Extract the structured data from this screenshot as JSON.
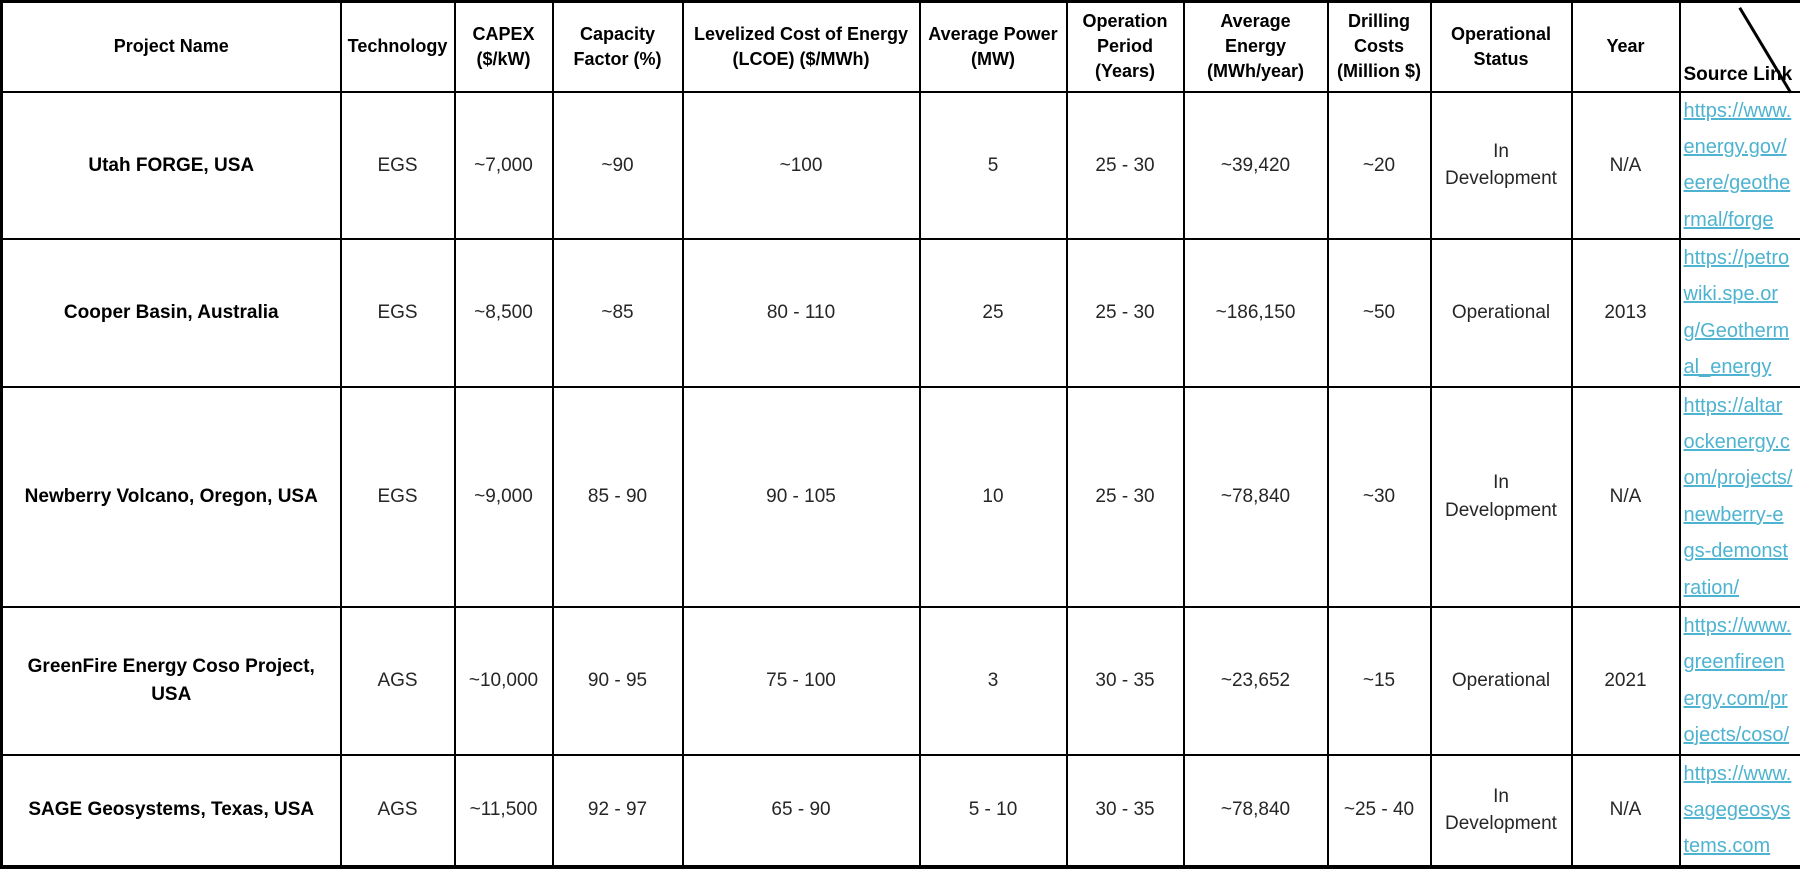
{
  "colors": {
    "link_blue": "#4eb3d0",
    "border_black": "#000000",
    "header_text": "#000000",
    "body_text": "#262626"
  },
  "table": {
    "columns": [
      {
        "key": "project_name",
        "label": "Project Name"
      },
      {
        "key": "technology",
        "label": "Technology"
      },
      {
        "key": "capex",
        "label": "CAPEX ($/kW)"
      },
      {
        "key": "capacity_factor",
        "label": "Capacity Factor (%)"
      },
      {
        "key": "lcoe",
        "label": "Levelized Cost of Energy (LCOE) ($/MWh)"
      },
      {
        "key": "average_power",
        "label": "Average Power (MW)"
      },
      {
        "key": "operation_period",
        "label": "Operation Period (Years)"
      },
      {
        "key": "average_energy",
        "label": "Average Energy (MWh/year)"
      },
      {
        "key": "drilling_costs",
        "label": "Drilling Costs (Million $)"
      },
      {
        "key": "operational_status",
        "label": "Operational Status"
      },
      {
        "key": "year",
        "label": "Year"
      },
      {
        "key": "source_link",
        "label": "Source Link"
      }
    ],
    "rows": [
      {
        "project_name": "Utah FORGE, USA",
        "technology": "EGS",
        "capex": "~7,000",
        "capacity_factor": "~90",
        "lcoe": "~100",
        "average_power": "5",
        "operation_period": "25 - 30",
        "average_energy": "~39,420",
        "drilling_costs": "~20",
        "operational_status": "In Development",
        "year": "N/A",
        "source_link": "https://www.energy.gov/eere/geothermal/forge"
      },
      {
        "project_name": "Cooper Basin, Australia",
        "technology": "EGS",
        "capex": "~8,500",
        "capacity_factor": "~85",
        "lcoe": "80 - 110",
        "average_power": "25",
        "operation_period": "25 - 30",
        "average_energy": "~186,150",
        "drilling_costs": "~50",
        "operational_status": "Operational",
        "year": "2013",
        "source_link": "https://petrowiki.spe.org/Geothermal_energy"
      },
      {
        "project_name": "Newberry Volcano, Oregon, USA",
        "technology": "EGS",
        "capex": "~9,000",
        "capacity_factor": "85 - 90",
        "lcoe": "90 - 105",
        "average_power": "10",
        "operation_period": "25 - 30",
        "average_energy": "~78,840",
        "drilling_costs": "~30",
        "operational_status": "In Development",
        "year": "N/A",
        "source_link": "https://altarockenergy.com/projects/newberry-egs-demonstration/"
      },
      {
        "project_name": "GreenFire Energy Coso Project, USA",
        "technology": "AGS",
        "capex": "~10,000",
        "capacity_factor": "90 - 95",
        "lcoe": "75 - 100",
        "average_power": "3",
        "operation_period": "30 - 35",
        "average_energy": "~23,652",
        "drilling_costs": "~15",
        "operational_status": "Operational",
        "year": "2021",
        "source_link": "https://www.greenfireenergy.com/projects/coso/"
      },
      {
        "project_name": "SAGE Geosystems, Texas, USA",
        "technology": "AGS",
        "capex": "~11,500",
        "capacity_factor": "92 - 97",
        "lcoe": "65 - 90",
        "average_power": "5 - 10",
        "operation_period": "30 - 35",
        "average_energy": "~78,840",
        "drilling_costs": "~25 - 40",
        "operational_status": "In Development",
        "year": "N/A",
        "source_link": "https://www.sagegeosystems.com"
      }
    ]
  }
}
